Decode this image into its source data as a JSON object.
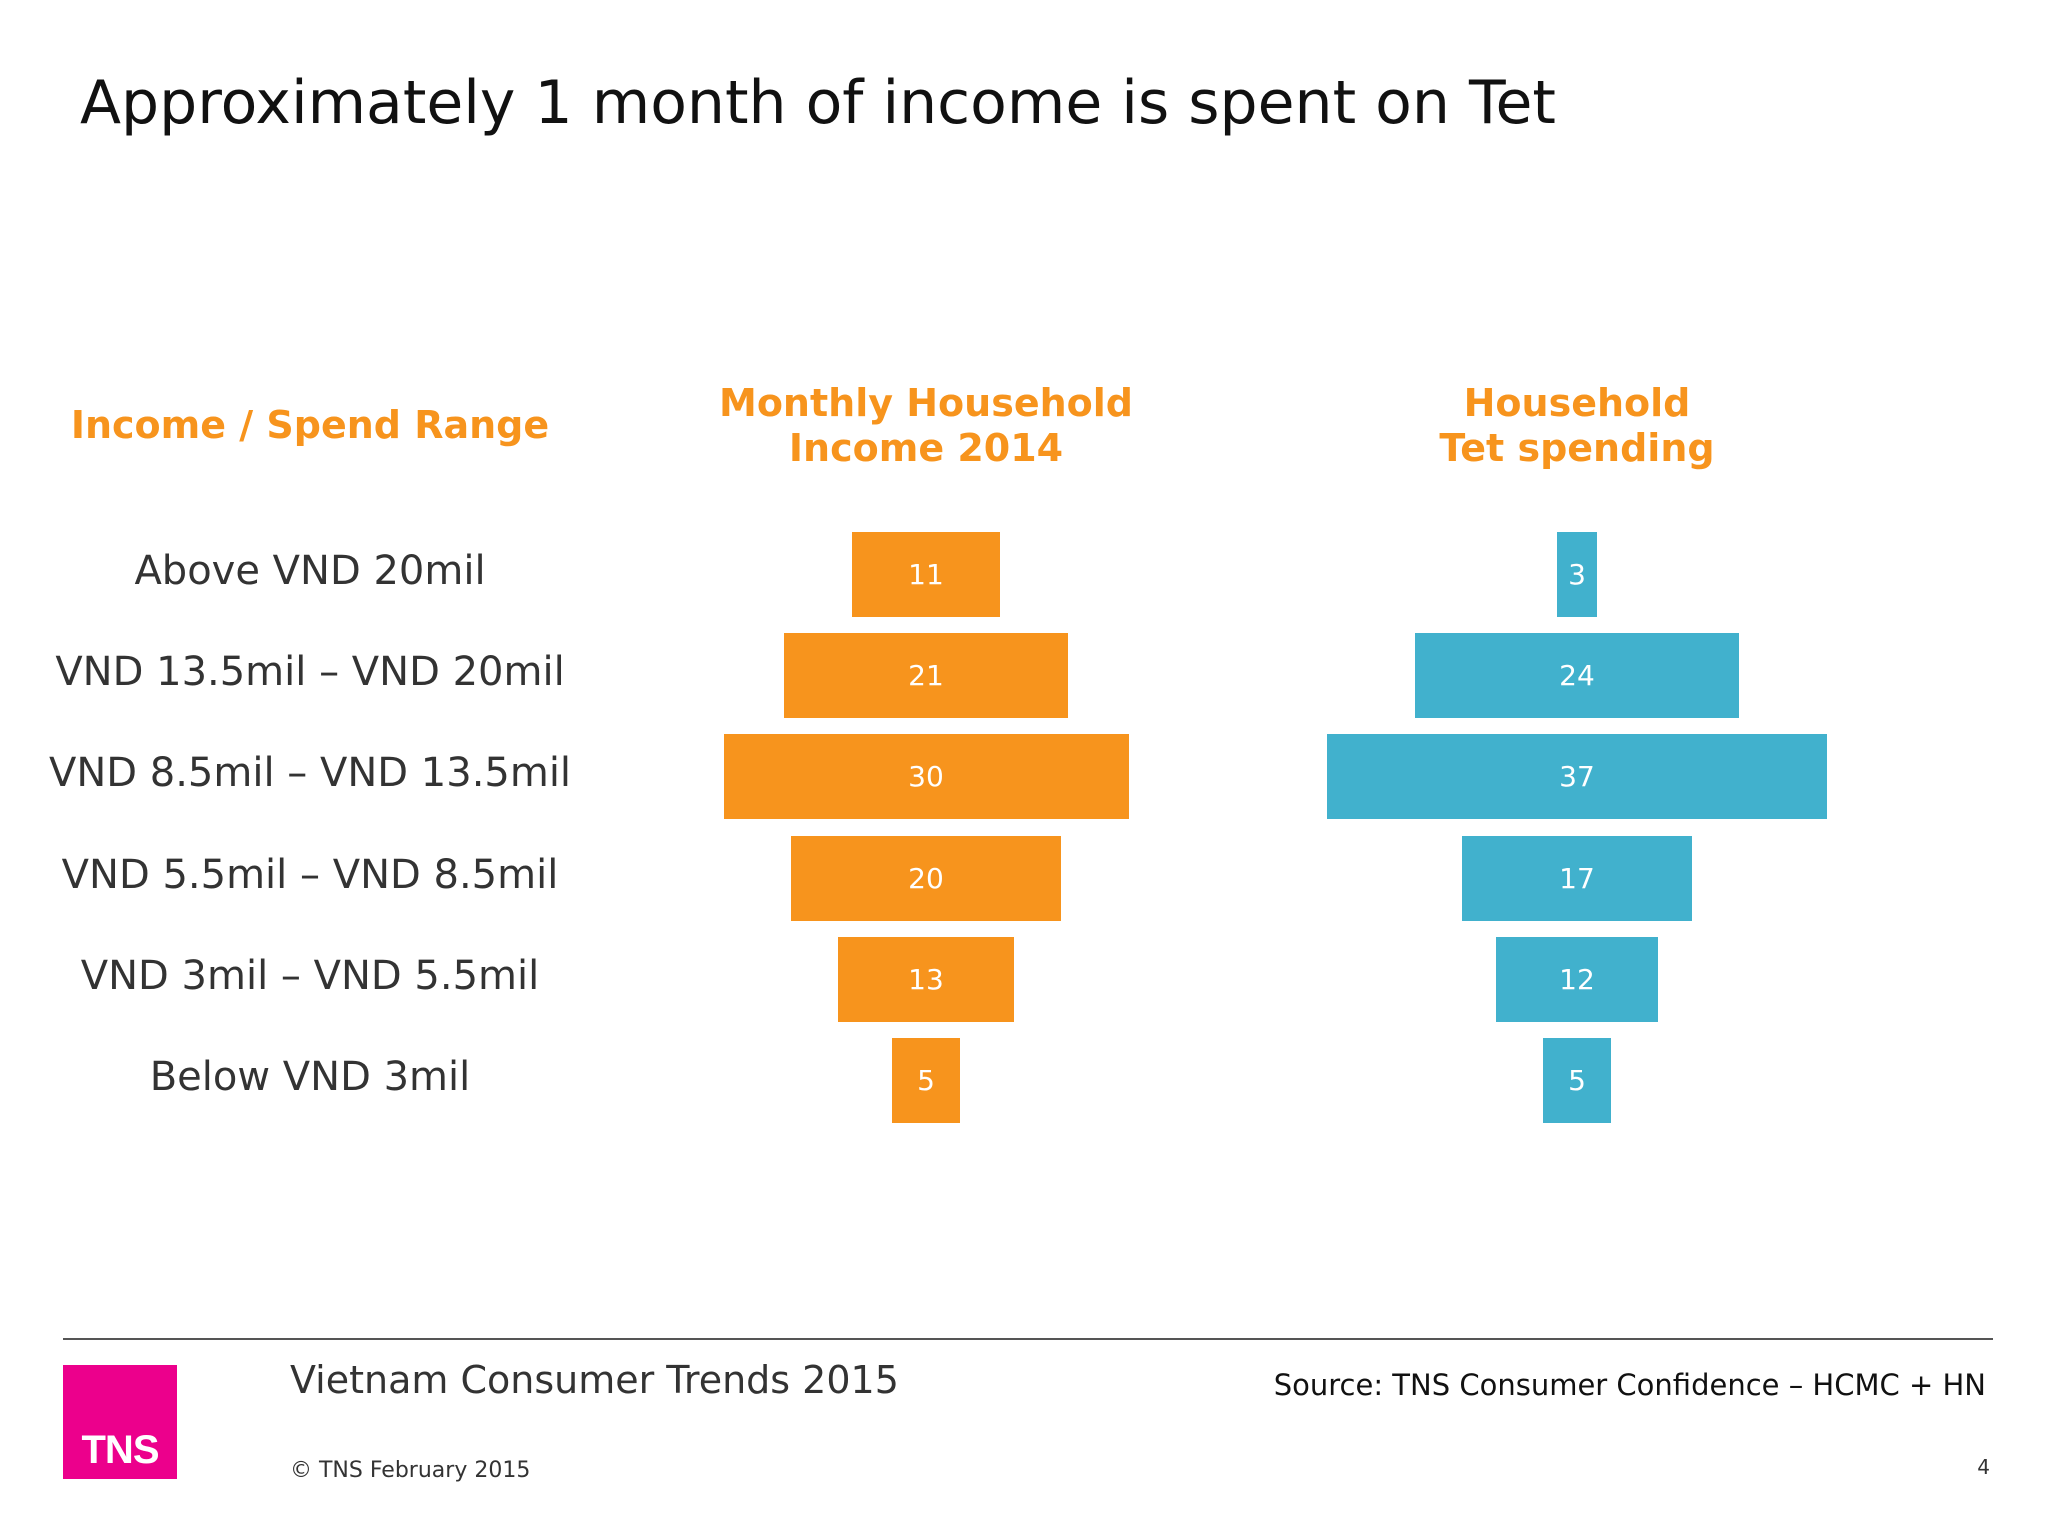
{
  "title": "Approximately 1 month of income is spent on Tet",
  "chart_data": {
    "type": "bar",
    "orientation": "horizontal-centered",
    "category_header": "Income / Spend Range",
    "categories": [
      "Above VND 20mil",
      "VND 13.5mil – VND 20mil",
      "VND 8.5mil – VND 13.5mil",
      "VND 5.5mil – VND 8.5mil",
      "VND 3mil – VND 5.5mil",
      "Below VND 3mil"
    ],
    "series": [
      {
        "name": "Monthly Household Income 2014",
        "name_lines": [
          "Monthly Household",
          "Income 2014"
        ],
        "color": "#f7941d",
        "values": [
          11,
          21,
          30,
          20,
          13,
          5
        ]
      },
      {
        "name": "Household Tet spending",
        "name_lines": [
          "Household",
          "Tet spending"
        ],
        "color": "#41b1cd",
        "values": [
          3,
          24,
          37,
          17,
          12,
          5
        ]
      }
    ],
    "data_labels": true,
    "grid": false,
    "legend": "none"
  },
  "footer": {
    "report_title": "Vietnam Consumer Trends 2015",
    "copyright": "© TNS February 2015",
    "source": "Source: TNS  Consumer Confidence – HCMC + HN",
    "page_number": "4",
    "logo_text": "TNS"
  }
}
